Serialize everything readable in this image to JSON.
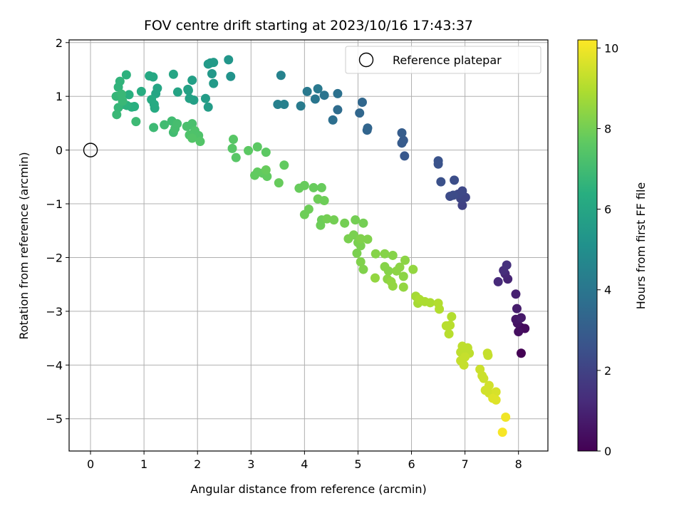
{
  "chart_data": {
    "type": "scatter",
    "title": "FOV centre drift starting at 2023/10/16 17:43:37",
    "xlabel": "Angular distance from reference (arcmin)",
    "ylabel": "Rotation from reference (arcmin)",
    "xlim": [
      -0.4,
      8.55
    ],
    "ylim": [
      -5.6,
      2.05
    ],
    "xticks": [
      0,
      1,
      2,
      3,
      4,
      5,
      6,
      7,
      8
    ],
    "yticks": [
      -5,
      -4,
      -3,
      -2,
      -1,
      0,
      1,
      2
    ],
    "xtick_labels": [
      "0",
      "1",
      "2",
      "3",
      "4",
      "5",
      "6",
      "7",
      "8"
    ],
    "ytick_labels": [
      "−5",
      "−4",
      "−3",
      "−2",
      "−1",
      "0",
      "1",
      "2"
    ],
    "grid": true,
    "legend": {
      "position": "top-right",
      "entries": [
        {
          "label": "Reference platepar",
          "marker": "open-circle"
        }
      ]
    },
    "reference_point": {
      "x": 0,
      "y": 0
    },
    "colorbar": {
      "label": "Hours from first FF file",
      "colormap": "viridis",
      "range": [
        0,
        10.2
      ],
      "ticks": [
        0,
        2,
        4,
        6,
        8,
        10
      ],
      "tick_labels": [
        "0",
        "2",
        "4",
        "6",
        "8",
        "10"
      ]
    },
    "series": [
      {
        "points": [
          [
            8.05,
            -3.78,
            0.0
          ],
          [
            8.04,
            -3.3,
            0.2
          ],
          [
            8.12,
            -3.32,
            0.3
          ],
          [
            8.0,
            -3.38,
            0.4
          ],
          [
            7.98,
            -3.22,
            0.5
          ],
          [
            7.95,
            -3.15,
            0.6
          ],
          [
            8.05,
            -3.12,
            0.7
          ],
          [
            7.97,
            -2.95,
            0.8
          ],
          [
            7.95,
            -2.68,
            0.9
          ],
          [
            7.8,
            -2.4,
            1.0
          ],
          [
            7.75,
            -2.3,
            1.1
          ],
          [
            7.62,
            -2.45,
            1.2
          ],
          [
            7.72,
            -2.24,
            1.3
          ],
          [
            7.78,
            -2.14,
            1.4
          ],
          [
            6.95,
            -1.03,
            2.0
          ],
          [
            6.92,
            -0.9,
            2.1
          ],
          [
            7.01,
            -0.88,
            2.1
          ],
          [
            6.87,
            -0.82,
            2.2
          ],
          [
            6.95,
            -0.76,
            2.2
          ],
          [
            6.78,
            -0.84,
            2.3
          ],
          [
            6.72,
            -0.86,
            2.3
          ],
          [
            6.8,
            -0.56,
            2.4
          ],
          [
            6.55,
            -0.59,
            2.5
          ],
          [
            6.5,
            -0.26,
            2.6
          ],
          [
            6.5,
            -0.2,
            2.6
          ],
          [
            5.87,
            -0.11,
            2.8
          ],
          [
            5.82,
            0.13,
            2.9
          ],
          [
            5.85,
            0.18,
            2.9
          ],
          [
            5.82,
            0.32,
            3.0
          ],
          [
            5.17,
            0.37,
            3.3
          ],
          [
            5.18,
            0.41,
            3.3
          ],
          [
            5.03,
            0.69,
            3.4
          ],
          [
            5.08,
            0.89,
            3.4
          ],
          [
            4.62,
            0.75,
            3.6
          ],
          [
            4.53,
            0.56,
            3.7
          ],
          [
            4.62,
            1.05,
            3.8
          ],
          [
            4.37,
            1.02,
            3.9
          ],
          [
            4.2,
            0.95,
            4.0
          ],
          [
            4.05,
            1.09,
            4.1
          ],
          [
            4.25,
            1.14,
            4.1
          ],
          [
            3.93,
            0.82,
            4.2
          ],
          [
            3.62,
            0.85,
            4.4
          ],
          [
            3.5,
            0.85,
            4.4
          ],
          [
            3.56,
            1.39,
            4.5
          ],
          [
            2.62,
            1.37,
            5.2
          ],
          [
            2.58,
            1.68,
            5.3
          ],
          [
            2.27,
            1.42,
            5.4
          ],
          [
            2.24,
            1.62,
            5.4
          ],
          [
            2.3,
            1.63,
            5.5
          ],
          [
            2.2,
            1.6,
            5.5
          ],
          [
            2.3,
            1.24,
            5.5
          ],
          [
            2.15,
            0.96,
            5.6
          ],
          [
            2.2,
            0.8,
            5.6
          ],
          [
            1.93,
            0.93,
            5.7
          ],
          [
            1.9,
            1.3,
            5.7
          ],
          [
            1.82,
            1.13,
            5.8
          ],
          [
            1.85,
            0.96,
            5.8
          ],
          [
            1.83,
            1.11,
            5.8
          ],
          [
            1.63,
            1.08,
            5.9
          ],
          [
            1.55,
            1.41,
            6.0
          ],
          [
            1.25,
            1.15,
            6.0
          ],
          [
            1.22,
            1.05,
            6.0
          ],
          [
            1.17,
            1.36,
            6.1
          ],
          [
            1.1,
            1.38,
            6.1
          ],
          [
            1.14,
            0.94,
            6.2
          ],
          [
            1.19,
            0.85,
            6.2
          ],
          [
            1.2,
            0.78,
            6.2
          ],
          [
            0.95,
            1.09,
            6.3
          ],
          [
            0.82,
            0.81,
            6.4
          ],
          [
            0.77,
            0.8,
            6.4
          ],
          [
            0.72,
            1.03,
            6.4
          ],
          [
            0.68,
            0.83,
            6.5
          ],
          [
            0.62,
            0.85,
            6.5
          ],
          [
            0.67,
            1.4,
            6.5
          ],
          [
            0.55,
            1.0,
            6.6
          ],
          [
            0.52,
            1.17,
            6.6
          ],
          [
            0.55,
            1.28,
            6.6
          ],
          [
            0.48,
            1.0,
            6.7
          ],
          [
            0.52,
            0.79,
            6.7
          ],
          [
            0.49,
            0.66,
            6.8
          ],
          [
            0.58,
            1.04,
            6.8
          ],
          [
            0.6,
            0.91,
            6.8
          ],
          [
            0.85,
            0.53,
            6.9
          ],
          [
            1.18,
            0.42,
            6.9
          ],
          [
            1.38,
            0.47,
            7.0
          ],
          [
            1.55,
            0.33,
            7.0
          ],
          [
            1.52,
            0.54,
            7.0
          ],
          [
            1.58,
            0.4,
            7.1
          ],
          [
            1.62,
            0.49,
            7.1
          ],
          [
            1.8,
            0.44,
            7.2
          ],
          [
            1.9,
            0.49,
            7.2
          ],
          [
            1.85,
            0.28,
            7.3
          ],
          [
            1.95,
            0.36,
            7.3
          ],
          [
            2.02,
            0.27,
            7.3
          ],
          [
            1.9,
            0.22,
            7.4
          ],
          [
            2.05,
            0.16,
            7.4
          ],
          [
            2.67,
            0.2,
            7.5
          ],
          [
            2.65,
            0.03,
            7.5
          ],
          [
            2.72,
            -0.14,
            7.5
          ],
          [
            2.95,
            -0.01,
            7.6
          ],
          [
            3.12,
            0.06,
            7.6
          ],
          [
            3.28,
            -0.04,
            7.6
          ],
          [
            3.62,
            -0.28,
            7.7
          ],
          [
            3.07,
            -0.47,
            7.7
          ],
          [
            3.12,
            -0.41,
            7.7
          ],
          [
            3.22,
            -0.43,
            7.7
          ],
          [
            3.3,
            -0.49,
            7.7
          ],
          [
            3.28,
            -0.37,
            7.8
          ],
          [
            3.52,
            -0.61,
            7.8
          ],
          [
            3.9,
            -0.71,
            7.8
          ],
          [
            4.0,
            -0.66,
            7.8
          ],
          [
            4.17,
            -0.7,
            7.8
          ],
          [
            4.32,
            -0.7,
            7.8
          ],
          [
            4.25,
            -0.91,
            7.9
          ],
          [
            4.37,
            -0.94,
            7.9
          ],
          [
            4.08,
            -1.1,
            7.9
          ],
          [
            4.0,
            -1.2,
            7.9
          ],
          [
            4.32,
            -1.3,
            7.9
          ],
          [
            4.3,
            -1.4,
            7.9
          ],
          [
            4.42,
            -1.28,
            8.0
          ],
          [
            4.55,
            -1.3,
            8.0
          ],
          [
            4.75,
            -1.36,
            8.0
          ],
          [
            4.95,
            -1.3,
            8.0
          ],
          [
            5.1,
            -1.36,
            8.0
          ],
          [
            4.82,
            -1.65,
            8.1
          ],
          [
            4.92,
            -1.58,
            8.1
          ],
          [
            5.0,
            -1.72,
            8.1
          ],
          [
            4.98,
            -1.92,
            8.1
          ],
          [
            5.05,
            -1.78,
            8.1
          ],
          [
            5.05,
            -1.65,
            8.2
          ],
          [
            5.18,
            -1.66,
            8.2
          ],
          [
            5.05,
            -2.08,
            8.2
          ],
          [
            5.1,
            -2.22,
            8.2
          ],
          [
            5.33,
            -1.93,
            8.3
          ],
          [
            5.5,
            -1.93,
            8.3
          ],
          [
            5.5,
            -2.17,
            8.3
          ],
          [
            5.57,
            -2.25,
            8.3
          ],
          [
            5.65,
            -1.96,
            8.3
          ],
          [
            5.78,
            -2.18,
            8.4
          ],
          [
            5.72,
            -2.25,
            8.4
          ],
          [
            5.88,
            -2.05,
            8.4
          ],
          [
            5.85,
            -2.35,
            8.4
          ],
          [
            5.55,
            -2.4,
            8.4
          ],
          [
            5.62,
            -2.45,
            8.5
          ],
          [
            5.65,
            -2.53,
            8.5
          ],
          [
            5.85,
            -2.55,
            8.5
          ],
          [
            5.32,
            -2.38,
            8.5
          ],
          [
            6.03,
            -2.22,
            8.5
          ],
          [
            6.08,
            -2.72,
            8.8
          ],
          [
            6.12,
            -2.85,
            8.8
          ],
          [
            6.15,
            -2.78,
            8.9
          ],
          [
            6.25,
            -2.82,
            8.9
          ],
          [
            6.35,
            -2.84,
            8.9
          ],
          [
            6.5,
            -2.85,
            9.0
          ],
          [
            6.52,
            -2.96,
            9.0
          ],
          [
            6.75,
            -3.1,
            9.0
          ],
          [
            6.65,
            -3.27,
            9.1
          ],
          [
            6.72,
            -3.26,
            9.1
          ],
          [
            6.7,
            -3.42,
            9.1
          ],
          [
            6.95,
            -3.65,
            9.2
          ],
          [
            7.05,
            -3.68,
            9.2
          ],
          [
            6.92,
            -3.76,
            9.2
          ],
          [
            7.08,
            -3.78,
            9.2
          ],
          [
            7.0,
            -3.85,
            9.3
          ],
          [
            6.92,
            -3.92,
            9.3
          ],
          [
            6.98,
            -4.0,
            9.3
          ],
          [
            7.42,
            -3.78,
            9.3
          ],
          [
            7.43,
            -3.82,
            9.3
          ],
          [
            7.28,
            -4.08,
            9.4
          ],
          [
            7.32,
            -4.2,
            9.4
          ],
          [
            7.35,
            -4.25,
            9.4
          ],
          [
            7.45,
            -4.38,
            9.5
          ],
          [
            7.38,
            -4.47,
            9.5
          ],
          [
            7.45,
            -4.52,
            9.5
          ],
          [
            7.58,
            -4.5,
            9.6
          ],
          [
            7.52,
            -4.62,
            9.7
          ],
          [
            7.58,
            -4.65,
            9.7
          ],
          [
            7.76,
            -4.97,
            10.0
          ],
          [
            7.7,
            -5.25,
            10.1
          ]
        ]
      }
    ]
  }
}
